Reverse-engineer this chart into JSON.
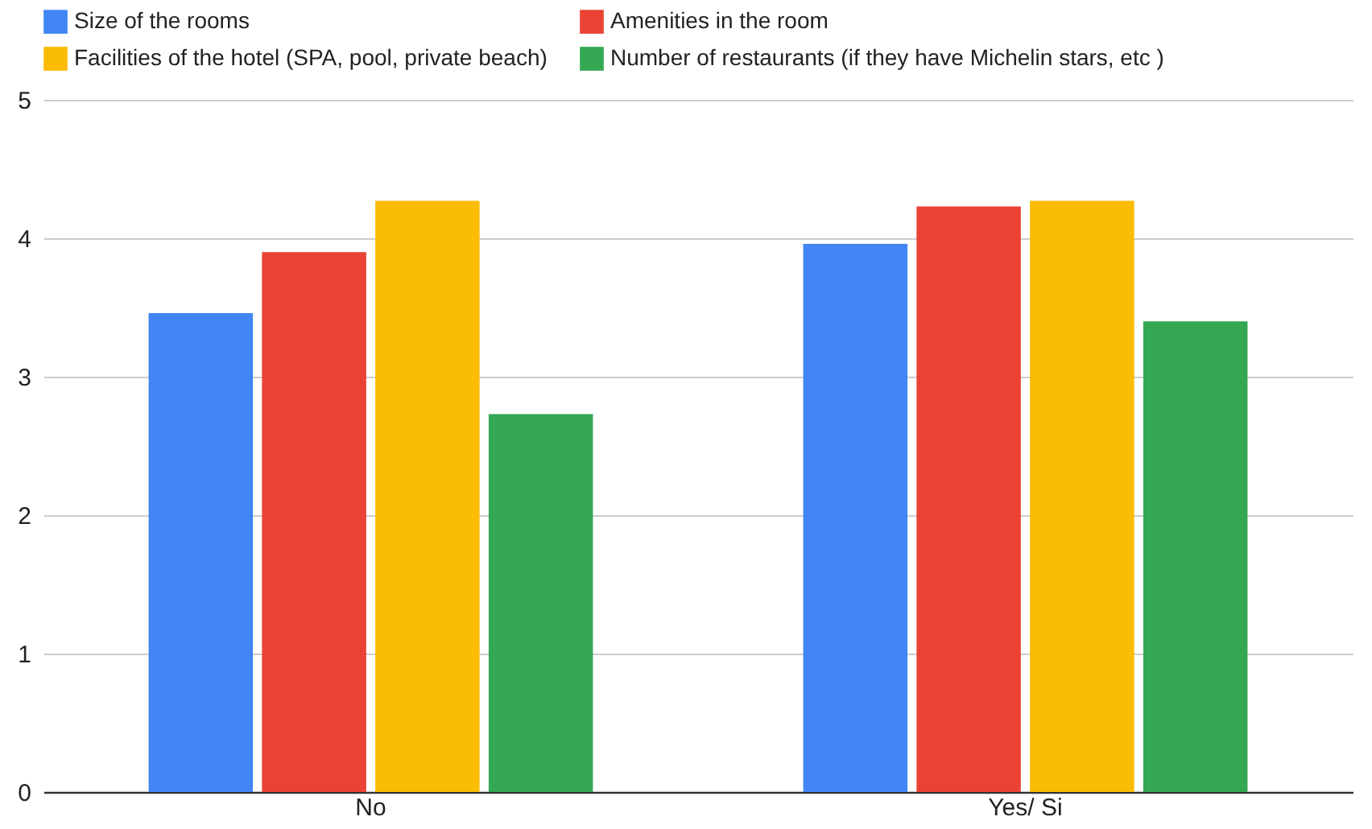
{
  "chart_data": {
    "type": "bar",
    "categories": [
      "No",
      "Yes/ Si"
    ],
    "series": [
      {
        "name": "Size of the rooms",
        "color": "#4285f4",
        "values": [
          3.46,
          3.96
        ]
      },
      {
        "name": "Amenities in the room",
        "color": "#ea4335",
        "values": [
          3.9,
          4.23
        ]
      },
      {
        "name": "Facilities of the hotel (SPA, pool, private beach)",
        "color": "#fbbc04",
        "values": [
          4.27,
          4.27
        ]
      },
      {
        "name": "Number of restaurants (if they have Michelin stars, etc )",
        "color": "#34a853",
        "values": [
          2.73,
          3.4
        ]
      }
    ],
    "ylim": [
      0,
      5
    ],
    "yticks": [
      0,
      1,
      2,
      3,
      4,
      5
    ],
    "grid": "y",
    "legend": "top"
  }
}
